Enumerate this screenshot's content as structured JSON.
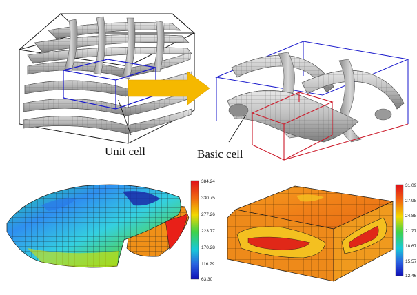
{
  "labels": {
    "unit_cell": "Unit cell",
    "basic_cell": "Basic cell"
  },
  "colorbar_left": {
    "ticks": [
      "384.24",
      "330.75",
      "277.26",
      "223.77",
      "170.28",
      "116.79",
      "63.30"
    ],
    "max": 384.24,
    "min": 63.3
  },
  "colorbar_right": {
    "ticks": [
      "31.09",
      "27.98",
      "24.88",
      "21.77",
      "18.67",
      "15.57",
      "12.46"
    ],
    "max": 31.09,
    "min": 12.46
  },
  "colors": {
    "arrow": "#f5b800",
    "unit_box": "#1a1a1a",
    "basic_highlight_box": "#1a1acc",
    "basic_cell_outer_box": "#1a1acc",
    "basic_cell_inner_box": "#cc1a2a",
    "yarn_gray": "#b9b9b9"
  }
}
